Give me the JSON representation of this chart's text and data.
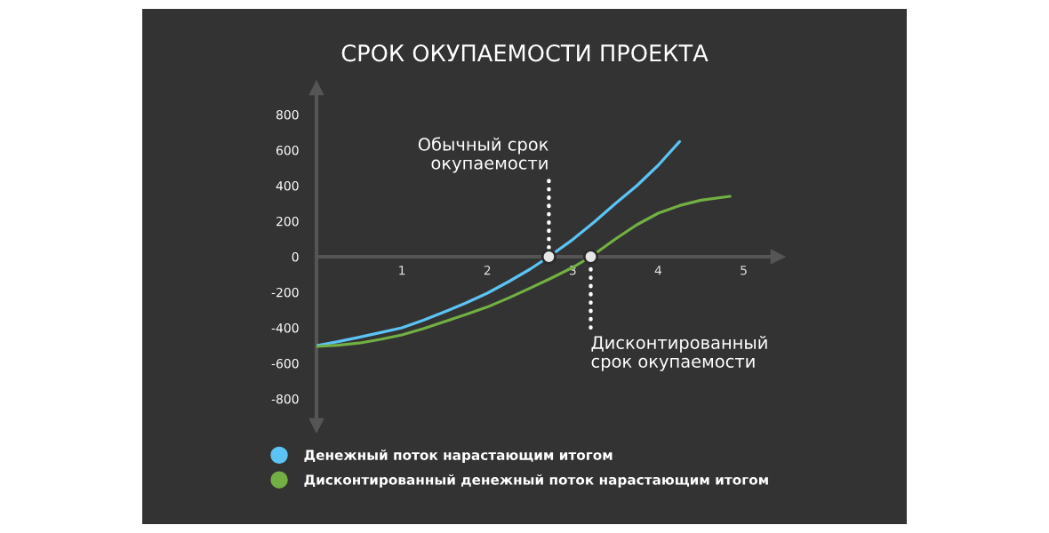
{
  "chart_data": {
    "type": "line",
    "title": "СРОК ОКУПАЕМОСТИ ПРОЕКТА",
    "series": [
      {
        "name": "Денежный поток нарастающим итогом",
        "color": "#5cc3f5",
        "x": [
          0,
          0.25,
          0.5,
          0.75,
          1,
          1.25,
          1.5,
          1.75,
          2,
          2.25,
          2.5,
          2.72,
          3,
          3.25,
          3.5,
          3.75,
          4,
          4.25
        ],
        "values": [
          -500,
          -478,
          -453,
          -427,
          -400,
          -358,
          -310,
          -260,
          -205,
          -140,
          -70,
          0,
          97,
          195,
          300,
          400,
          515,
          648
        ]
      },
      {
        "name": "Дисконтированный денежный поток нарастающим итогом",
        "color": "#72b043",
        "x": [
          0,
          0.25,
          0.5,
          0.75,
          1,
          1.25,
          1.5,
          1.75,
          2,
          2.25,
          2.5,
          2.75,
          3,
          3.21,
          3.5,
          3.75,
          4,
          4.25,
          4.5,
          4.84
        ],
        "values": [
          -505,
          -498,
          -486,
          -465,
          -440,
          -405,
          -365,
          -325,
          -283,
          -232,
          -177,
          -120,
          -60,
          0,
          100,
          180,
          245,
          288,
          318,
          340
        ]
      },
      {
        "type": "scatter",
        "color": "#e6e6e6",
        "marker": "circle",
        "x": [
          2.72,
          3.21
        ],
        "values": [
          0,
          0
        ]
      }
    ],
    "xlim": [
      0,
      5.4
    ],
    "ylim": [
      -950,
      950
    ],
    "xticks": [
      1,
      2,
      3,
      4,
      5
    ],
    "yticks": [
      -800,
      -600,
      -400,
      -200,
      0,
      200,
      400,
      600,
      800
    ],
    "annotations": [
      {
        "text": "Обычный срок\nокупаемости",
        "x": 2.72,
        "y": 0
      },
      {
        "text": "Дисконтированный\nсрок окупаемости",
        "x": 3.21,
        "y": 0
      }
    ],
    "legend": "bottom",
    "line_style": "solid"
  }
}
